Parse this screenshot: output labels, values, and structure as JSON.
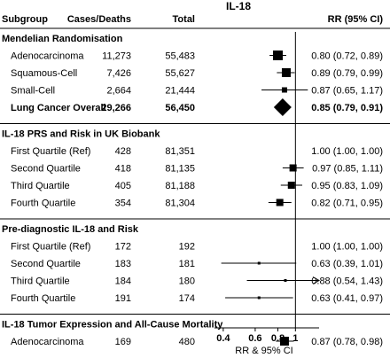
{
  "chart_data": {
    "type": "forest",
    "title": "IL-18",
    "columns": {
      "subgroup": "Subgroup",
      "cases_deaths": "Cases/Deaths",
      "total": "Total",
      "rr": "RR (95% CI)"
    },
    "xlabel": "RR & 95% CI",
    "x_scale": "log",
    "xlim": [
      0.35,
      1.35
    ],
    "x_ticks": [
      0.4,
      0.6,
      0.8,
      1
    ],
    "x_tick_labels": [
      "0.4",
      "0.6",
      "0.8",
      "1"
    ],
    "reference_line": 1,
    "sections": [
      {
        "header": "Mendelian Randomisation",
        "rows": [
          {
            "label": "Adenocarcinoma",
            "cases": "11,273",
            "total": "55,483",
            "rr": 0.8,
            "lo": 0.72,
            "hi": 0.89,
            "ci_text": "0.80 (0.72, 0.89)",
            "marker": "square",
            "size": 11
          },
          {
            "label": "Squamous-Cell",
            "cases": "7,426",
            "total": "55,627",
            "rr": 0.89,
            "lo": 0.79,
            "hi": 0.99,
            "ci_text": "0.89 (0.79, 0.99)",
            "marker": "square",
            "size": 10
          },
          {
            "label": "Small-Cell",
            "cases": "2,664",
            "total": "21,444",
            "rr": 0.87,
            "lo": 0.65,
            "hi": 1.17,
            "ci_text": "0.87 (0.65, 1.17)",
            "marker": "square",
            "size": 6
          },
          {
            "label": "Lung Cancer Overall",
            "cases": "29,266",
            "total": "56,450",
            "rr": 0.85,
            "lo": 0.79,
            "hi": 0.91,
            "ci_text": "0.85 (0.79, 0.91)",
            "marker": "diamond",
            "size": 10,
            "bold": true
          }
        ]
      },
      {
        "header": "IL-18 PRS and Risk in UK Biobank",
        "rows": [
          {
            "label": "First Quartile (Ref)",
            "cases": "428",
            "total": "81,351",
            "rr": 1.0,
            "lo": 1.0,
            "hi": 1.0,
            "ci_text": "1.00 (1.00, 1.00)",
            "marker": "none",
            "size": 0
          },
          {
            "label": "Second Quartile",
            "cases": "418",
            "total": "81,135",
            "rr": 0.97,
            "lo": 0.85,
            "hi": 1.11,
            "ci_text": "0.97 (0.85, 1.11)",
            "marker": "square",
            "size": 8
          },
          {
            "label": "Third Quartile",
            "cases": "405",
            "total": "81,188",
            "rr": 0.95,
            "lo": 0.83,
            "hi": 1.09,
            "ci_text": "0.95 (0.83, 1.09)",
            "marker": "square",
            "size": 8
          },
          {
            "label": "Fourth Quartile",
            "cases": "354",
            "total": "81,304",
            "rr": 0.82,
            "lo": 0.71,
            "hi": 0.95,
            "ci_text": "0.82 (0.71, 0.95)",
            "marker": "square",
            "size": 8
          }
        ]
      },
      {
        "header": "Pre-diagnostic IL-18 and Risk",
        "rows": [
          {
            "label": "First Quartile (Ref)",
            "cases": "172",
            "total": "192",
            "rr": 1.0,
            "lo": 1.0,
            "hi": 1.0,
            "ci_text": "1.00 (1.00, 1.00)",
            "marker": "none",
            "size": 0
          },
          {
            "label": "Second Quartile",
            "cases": "183",
            "total": "181",
            "rr": 0.63,
            "lo": 0.39,
            "hi": 1.01,
            "ci_text": "0.63 (0.39, 1.01)",
            "marker": "square",
            "size": 3
          },
          {
            "label": "Third Quartile",
            "cases": "184",
            "total": "180",
            "rr": 0.88,
            "lo": 0.54,
            "hi": 1.43,
            "ci_text": "0.88 (0.54, 1.43)",
            "marker": "square",
            "size": 3,
            "arrow_right": true
          },
          {
            "label": "Fourth Quartile",
            "cases": "191",
            "total": "174",
            "rr": 0.63,
            "lo": 0.41,
            "hi": 0.97,
            "ci_text": "0.63 (0.41, 0.97)",
            "marker": "square",
            "size": 3
          }
        ]
      },
      {
        "header": "IL-18 Tumor Expression and All-Cause Mortality",
        "rows": [
          {
            "label": "Adenocarcinoma",
            "cases": "169",
            "total": "480",
            "rr": 0.87,
            "lo": 0.78,
            "hi": 0.98,
            "ci_text": "0.87 (0.78, 0.98)",
            "marker": "square",
            "size": 10
          }
        ]
      }
    ]
  }
}
